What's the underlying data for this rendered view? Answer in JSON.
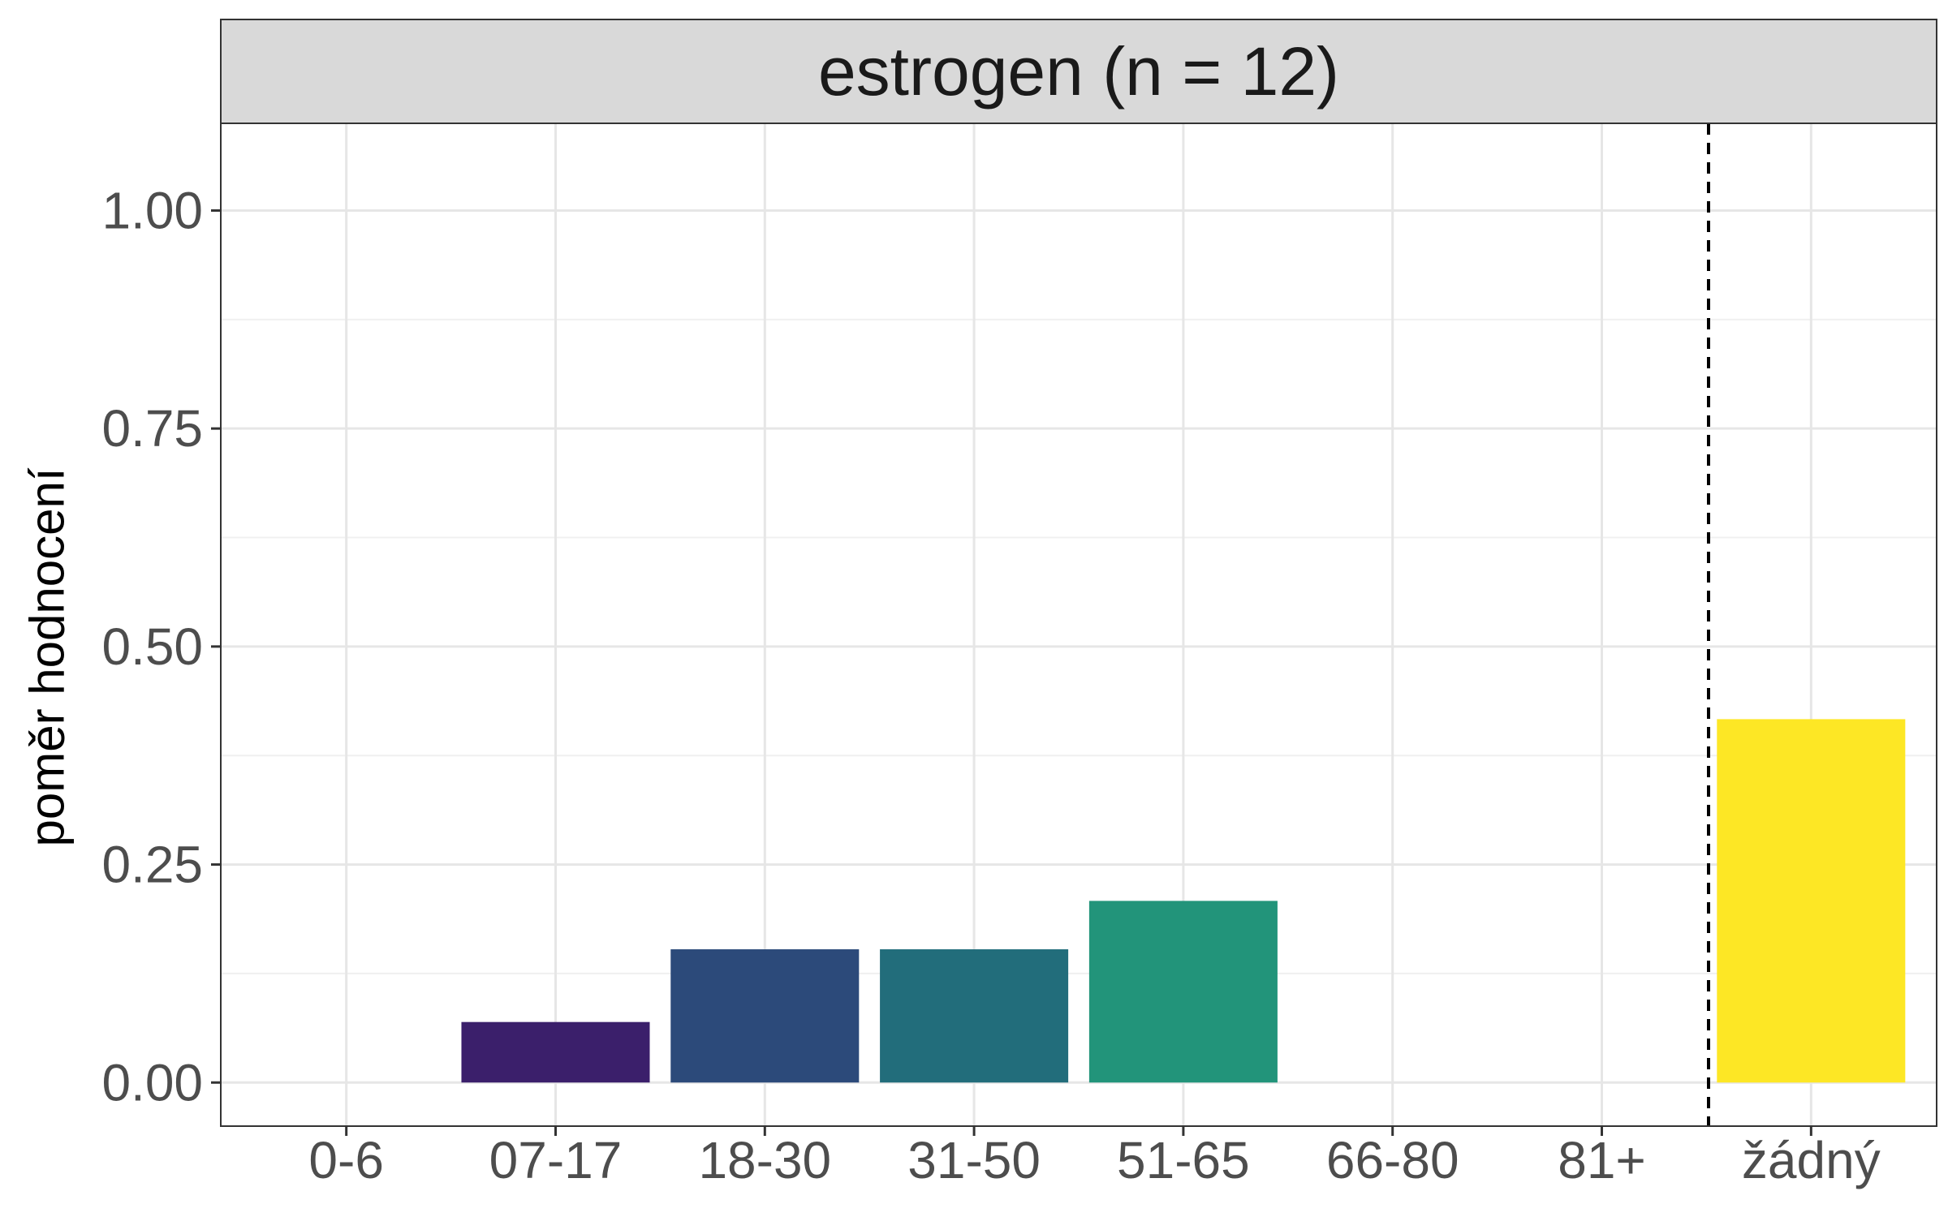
{
  "chart_data": {
    "type": "bar",
    "facet_title": "estrogen (n = 12)",
    "ylabel": "poměr hodnocení",
    "xlabel": "",
    "categories": [
      "0-6",
      "07-17",
      "18-30",
      "31-50",
      "51-65",
      "66-80",
      "81+",
      "žádný"
    ],
    "values": [
      0,
      0.0694,
      0.1528,
      0.1528,
      0.2083,
      0,
      0,
      0.4167
    ],
    "colors": [
      "#440154",
      "#3b1f6b",
      "#2c4a7a",
      "#226d7b",
      "#22947a",
      "#4fb66a",
      "#a5d742",
      "#fde725"
    ],
    "ylim": [
      -0.05,
      1.1
    ],
    "yticks": [
      0,
      0.25,
      0.5,
      0.75,
      1.0
    ],
    "ytick_labels": [
      "0.00",
      "0.25",
      "0.50",
      "0.75",
      "1.00"
    ],
    "separator_between": [
      "81+",
      "žádný"
    ],
    "separator_style": "dashed",
    "grid": true,
    "legend": "none"
  }
}
